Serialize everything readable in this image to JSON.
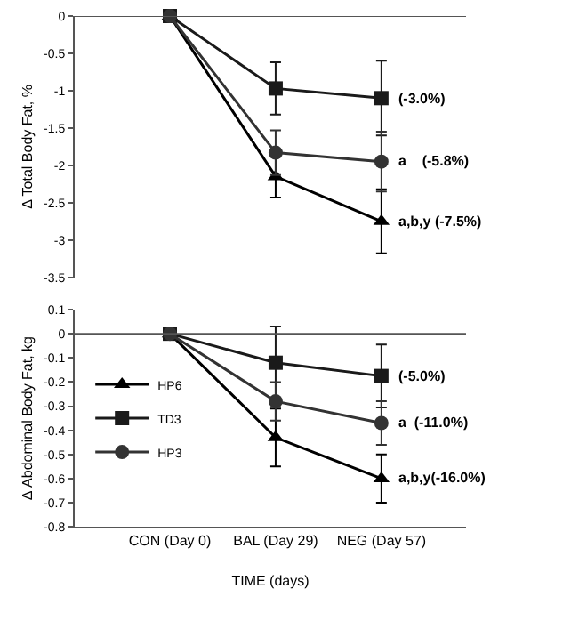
{
  "chart_data": [
    {
      "type": "line",
      "ylabel": "Δ Total Body Fat, %",
      "categories": [
        "CON (Day 0)",
        "BAL (Day 29)",
        "NEG (Day 57)"
      ],
      "ylim": [
        -3.5,
        0
      ],
      "yticks": [
        0,
        -0.5,
        -1,
        -1.5,
        -2,
        -2.5,
        -3,
        -3.5
      ],
      "tick_labels": "y",
      "legend": false,
      "ref_lines": [
        {
          "axis": "y",
          "value": 0,
          "color": "#555555"
        }
      ],
      "series": [
        {
          "color": "#000000",
          "marker": "triangle",
          "values": [
            0,
            -2.15,
            -2.75
          ],
          "errors": [
            null,
            0.28,
            0.43
          ]
        },
        {
          "color": "#1a1a1a",
          "marker": "square",
          "values": [
            0,
            -0.97,
            -1.1
          ],
          "errors": [
            null,
            0.35,
            0.5
          ]
        },
        {
          "color": "#333333",
          "marker": "circle",
          "values": [
            0,
            -1.83,
            -1.95
          ],
          "errors": [
            null,
            0.3,
            0.4
          ]
        }
      ],
      "annotations": [
        {
          "text": "(-3.0%)",
          "x": "NEG (Day 57)",
          "y": -1.1
        },
        {
          "text": "a    (-5.8%)",
          "x": "NEG (Day 57)",
          "y": -1.95
        },
        {
          "text": "a,b,y (-7.5%)",
          "x": "NEG (Day 57)",
          "y": -2.75
        }
      ]
    },
    {
      "type": "line",
      "ylabel": "Δ Abdominal Body Fat, kg",
      "xlabel": "TIME (days)",
      "categories": [
        "CON (Day 0)",
        "BAL (Day 29)",
        "NEG (Day 57)"
      ],
      "ylim": [
        -0.8,
        0.1
      ],
      "yticks": [
        0.1,
        0,
        -0.1,
        -0.2,
        -0.3,
        -0.4,
        -0.5,
        -0.6,
        -0.7,
        -0.8
      ],
      "legend": "center left",
      "ref_lines": [
        {
          "axis": "y",
          "value": 0,
          "color": "#555555"
        }
      ],
      "series": [
        {
          "name": "HP6",
          "color": "#000000",
          "marker": "triangle",
          "values": [
            0,
            -0.43,
            -0.6
          ],
          "errors": [
            null,
            0.12,
            0.1
          ]
        },
        {
          "name": "TD3",
          "color": "#1a1a1a",
          "marker": "square",
          "values": [
            0,
            -0.12,
            -0.175
          ],
          "errors": [
            null,
            0.15,
            0.13
          ]
        },
        {
          "name": "HP3",
          "color": "#333333",
          "marker": "circle",
          "values": [
            0,
            -0.28,
            -0.37
          ],
          "errors": [
            null,
            0.08,
            0.09
          ]
        }
      ],
      "annotations": [
        {
          "text": "(-5.0%)",
          "x": "NEG (Day 57)",
          "y": -0.175
        },
        {
          "text": "a  (-11.0%)",
          "x": "NEG (Day 57)",
          "y": -0.37
        },
        {
          "text": "a,b,y(-16.0%)",
          "x": "NEG (Day 57)",
          "y": -0.6
        }
      ]
    }
  ]
}
